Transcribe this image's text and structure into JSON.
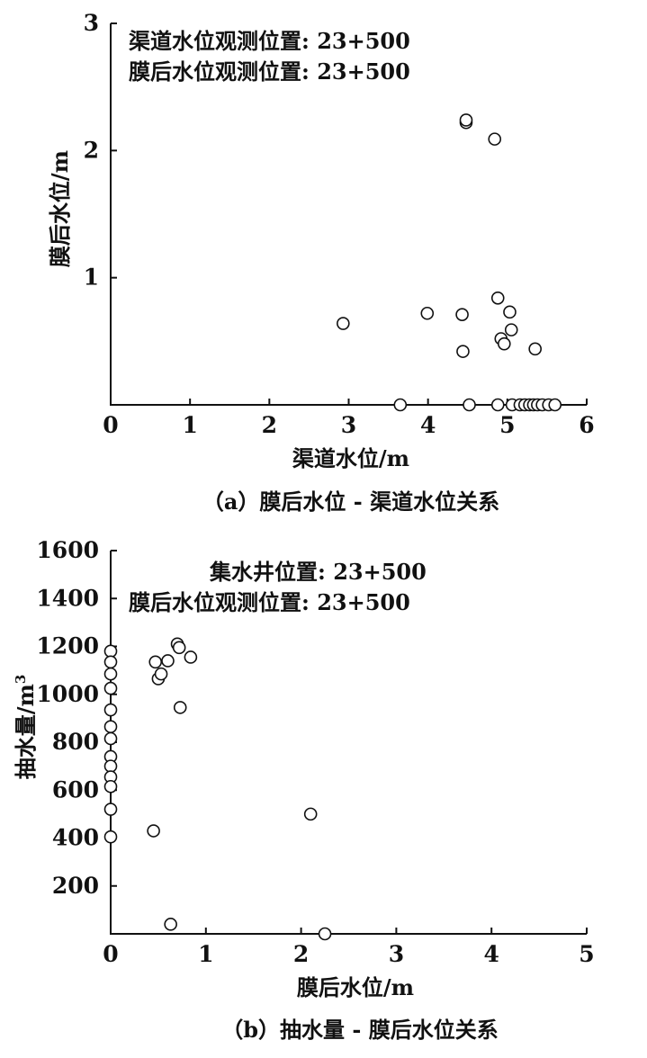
{
  "chart_data": [
    {
      "type": "scatter",
      "title": "",
      "caption": "（a）膜后水位 - 渠道水位关系",
      "xlabel": "渠道水位/m",
      "ylabel": "膜后水位/m",
      "xlim": [
        0,
        6
      ],
      "ylim": [
        0,
        3
      ],
      "xticks": [
        "0",
        "1",
        "2",
        "3",
        "4",
        "5",
        "6"
      ],
      "yticks": [
        "1",
        "2",
        "3"
      ],
      "annotations": [
        "渠道水位观测位置: 23+500",
        "膜后水位观测位置: 23+500"
      ],
      "grid": false,
      "points": [
        {
          "x": 2.93,
          "y": 0.64
        },
        {
          "x": 3.99,
          "y": 0.72
        },
        {
          "x": 4.43,
          "y": 0.71
        },
        {
          "x": 4.44,
          "y": 0.42
        },
        {
          "x": 4.48,
          "y": 2.22
        },
        {
          "x": 4.48,
          "y": 2.24
        },
        {
          "x": 4.84,
          "y": 2.09
        },
        {
          "x": 4.88,
          "y": 0.84
        },
        {
          "x": 4.92,
          "y": 0.52
        },
        {
          "x": 4.96,
          "y": 0.48
        },
        {
          "x": 5.03,
          "y": 0.73
        },
        {
          "x": 5.05,
          "y": 0.59
        },
        {
          "x": 5.35,
          "y": 0.44
        },
        {
          "x": 3.65,
          "y": 0.0
        },
        {
          "x": 4.52,
          "y": 0.0
        },
        {
          "x": 4.88,
          "y": 0.0
        },
        {
          "x": 5.06,
          "y": 0.0
        },
        {
          "x": 5.16,
          "y": 0.0
        },
        {
          "x": 5.22,
          "y": 0.0
        },
        {
          "x": 5.28,
          "y": 0.0
        },
        {
          "x": 5.33,
          "y": 0.0
        },
        {
          "x": 5.38,
          "y": 0.0
        },
        {
          "x": 5.44,
          "y": 0.0
        },
        {
          "x": 5.52,
          "y": 0.0
        },
        {
          "x": 5.6,
          "y": 0.0
        }
      ]
    },
    {
      "type": "scatter",
      "title": "",
      "caption": "（b）抽水量 - 膜后水位关系",
      "xlabel": "膜后水位/m",
      "ylabel": "抽水量/m",
      "ylabel_sup": "3",
      "xlim": [
        0,
        5
      ],
      "ylim": [
        0,
        1600
      ],
      "xticks": [
        "0",
        "1",
        "2",
        "3",
        "4",
        "5"
      ],
      "yticks": [
        "200",
        "400",
        "600",
        "800",
        "1000",
        "1200",
        "1400",
        "1600"
      ],
      "annotations": [
        "集水井位置: 23+500",
        "膜后水位观测位置: 23+500"
      ],
      "grid": false,
      "points": [
        {
          "x": 0.0,
          "y": 1180
        },
        {
          "x": 0.0,
          "y": 1135
        },
        {
          "x": 0.0,
          "y": 1085
        },
        {
          "x": 0.0,
          "y": 1025
        },
        {
          "x": 0.0,
          "y": 935
        },
        {
          "x": 0.0,
          "y": 865
        },
        {
          "x": 0.0,
          "y": 815
        },
        {
          "x": 0.0,
          "y": 740
        },
        {
          "x": 0.0,
          "y": 700
        },
        {
          "x": 0.0,
          "y": 655
        },
        {
          "x": 0.0,
          "y": 615
        },
        {
          "x": 0.0,
          "y": 520
        },
        {
          "x": 0.0,
          "y": 405
        },
        {
          "x": 0.45,
          "y": 430
        },
        {
          "x": 0.47,
          "y": 1135
        },
        {
          "x": 0.5,
          "y": 1065
        },
        {
          "x": 0.53,
          "y": 1085
        },
        {
          "x": 0.6,
          "y": 1140
        },
        {
          "x": 0.7,
          "y": 1210
        },
        {
          "x": 0.72,
          "y": 1195
        },
        {
          "x": 0.73,
          "y": 945
        },
        {
          "x": 0.84,
          "y": 1155
        },
        {
          "x": 0.63,
          "y": 40
        },
        {
          "x": 2.1,
          "y": 500
        },
        {
          "x": 2.25,
          "y": 0
        }
      ]
    }
  ]
}
